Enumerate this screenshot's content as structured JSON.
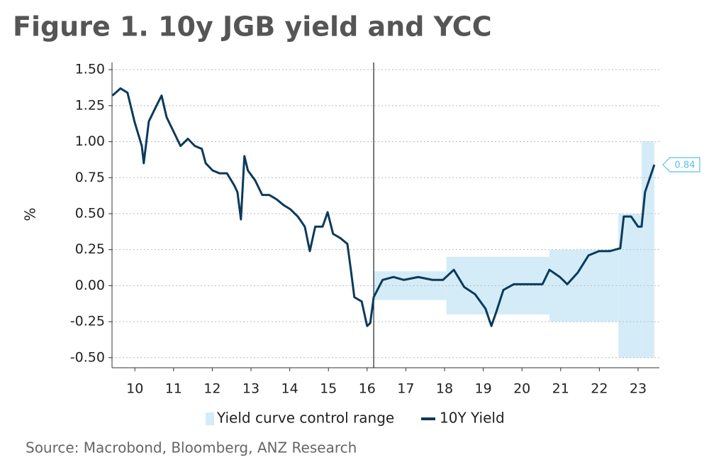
{
  "chart_data": {
    "type": "line",
    "title": "Figure 1. 10y JGB yield and YCC",
    "y_label": "%",
    "source": "Source: Macrobond, Bloomberg, ANZ Research",
    "xlim": [
      9.91,
      24.05
    ],
    "ylim": [
      -0.57,
      1.55
    ],
    "yticks": [
      {
        "value": 1.5,
        "label": "1.50"
      },
      {
        "value": 1.25,
        "label": "1.25"
      },
      {
        "value": 1,
        "label": "1.00"
      },
      {
        "value": 0.75,
        "label": "0.75"
      },
      {
        "value": 0.5,
        "label": "0.50"
      },
      {
        "value": 0.25,
        "label": "0.25"
      },
      {
        "value": 0,
        "label": "0.00"
      },
      {
        "value": -0.25,
        "label": "-0.25"
      },
      {
        "value": -0.5,
        "label": "-0.50"
      }
    ],
    "xticks": [
      {
        "value": 10.5,
        "label": "10"
      },
      {
        "value": 11.5,
        "label": "11"
      },
      {
        "value": 12.5,
        "label": "12"
      },
      {
        "value": 13.5,
        "label": "13"
      },
      {
        "value": 14.5,
        "label": "14"
      },
      {
        "value": 15.5,
        "label": "15"
      },
      {
        "value": 16.5,
        "label": "16"
      },
      {
        "value": 17.5,
        "label": "17"
      },
      {
        "value": 18.5,
        "label": "18"
      },
      {
        "value": 19.5,
        "label": "19"
      },
      {
        "value": 20.5,
        "label": "20"
      },
      {
        "value": 21.5,
        "label": "21"
      },
      {
        "value": 22.5,
        "label": "22"
      },
      {
        "value": 23.5,
        "label": "23"
      }
    ],
    "grid": true,
    "vline": 16.67,
    "range": {
      "name": "Yield curve control range",
      "color": "#d4ecf7",
      "bands": [
        {
          "x0": 16.67,
          "x1": 18.55,
          "low": -0.1,
          "high": 0.1
        },
        {
          "x0": 18.55,
          "x1": 21.21,
          "low": -0.2,
          "high": 0.2
        },
        {
          "x0": 21.21,
          "x1": 22.99,
          "low": -0.25,
          "high": 0.25
        },
        {
          "x0": 22.99,
          "x1": 23.59,
          "low": -0.5,
          "high": 0.5
        },
        {
          "x0": 23.59,
          "x1": 23.92,
          "low": -0.5,
          "high": 1
        }
      ]
    },
    "series": [
      {
        "name": "10Y Yield",
        "color": "#0b3a5c",
        "x": [
          9.92,
          10.13,
          10.31,
          10.49,
          10.68,
          10.73,
          10.86,
          11.04,
          11.19,
          11.32,
          11.5,
          11.68,
          11.87,
          12.05,
          12.23,
          12.33,
          12.51,
          12.69,
          12.88,
          13.06,
          13.15,
          13.24,
          13.33,
          13.42,
          13.61,
          13.79,
          13.97,
          14.16,
          14.34,
          14.52,
          14.71,
          14.89,
          15.02,
          15.16,
          15.35,
          15.48,
          15.62,
          15.81,
          15.99,
          16.08,
          16.17,
          16.36,
          16.5,
          16.58,
          16.67,
          16.9,
          17.18,
          17.45,
          17.82,
          18.19,
          18.46,
          18.74,
          19.01,
          19.29,
          19.56,
          19.71,
          19.84,
          20.02,
          20.29,
          20.66,
          21.03,
          21.21,
          21.48,
          21.67,
          21.94,
          22.22,
          22.49,
          22.77,
          23.04,
          23.13,
          23.32,
          23.5,
          23.59,
          23.68,
          23.92
        ],
        "values": [
          1.32,
          1.37,
          1.34,
          1.14,
          0.97,
          0.85,
          1.14,
          1.24,
          1.32,
          1.17,
          1.07,
          0.97,
          1.02,
          0.97,
          0.95,
          0.85,
          0.8,
          0.78,
          0.78,
          0.7,
          0.65,
          0.46,
          0.9,
          0.8,
          0.73,
          0.63,
          0.63,
          0.6,
          0.56,
          0.53,
          0.48,
          0.41,
          0.24,
          0.41,
          0.41,
          0.51,
          0.36,
          0.33,
          0.29,
          0.11,
          -0.08,
          -0.11,
          -0.28,
          -0.26,
          -0.08,
          0.04,
          0.06,
          0.04,
          0.06,
          0.04,
          0.04,
          0.11,
          -0.01,
          -0.06,
          -0.16,
          -0.28,
          -0.18,
          -0.03,
          0.01,
          0.01,
          0.01,
          0.11,
          0.06,
          0.01,
          0.09,
          0.21,
          0.24,
          0.24,
          0.26,
          0.48,
          0.48,
          0.41,
          0.41,
          0.65,
          0.84
        ],
        "value_labels": [
          null,
          null,
          null,
          null,
          null,
          null,
          null,
          null,
          null,
          null,
          null,
          null,
          null,
          null,
          null,
          null,
          null,
          null,
          null,
          null,
          null,
          null,
          null,
          null,
          null,
          null,
          null,
          null,
          null,
          null,
          null,
          null,
          null,
          null,
          null,
          null,
          null,
          null,
          null,
          null,
          null,
          null,
          null,
          null,
          null,
          null,
          null,
          null,
          null,
          null,
          null,
          null,
          null,
          null,
          null,
          null,
          null,
          null,
          null,
          null,
          null,
          null,
          null,
          null,
          null,
          null,
          null,
          null,
          null,
          null,
          null,
          null,
          null,
          null,
          "0.84"
        ]
      }
    ]
  }
}
